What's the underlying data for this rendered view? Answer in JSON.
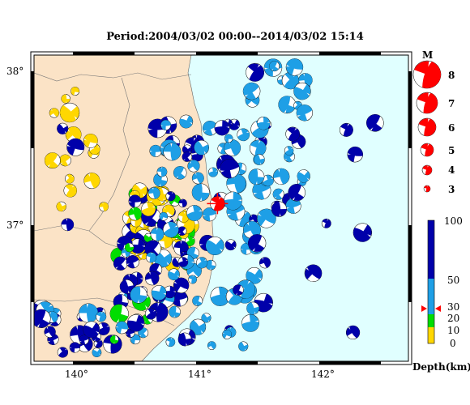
{
  "title": "Period:2004/03/02 00:00--2014/03/02 15:14",
  "map": {
    "lon_labels": [
      "140°",
      "141°",
      "142°"
    ],
    "lat_labels": [
      "38°",
      "37°"
    ],
    "lon_range": [
      139.7,
      142.7
    ],
    "lat_range": [
      36.1,
      38.1
    ],
    "land_color": "#fbe3c6",
    "sea_color": "#e0ffff",
    "highlight_event": {
      "lon": 141.17,
      "lat": 37.13,
      "color": "#ff0000"
    }
  },
  "magnitude_legend": {
    "title": "M",
    "items": [
      "8",
      "7",
      "6",
      "5",
      "4",
      "3"
    ],
    "color": "#ff0000"
  },
  "depth_legend": {
    "title": "Depth(km)",
    "ticks": [
      "100",
      "50",
      "30",
      "20",
      "10",
      "0"
    ],
    "colors": {
      "shallow_0_10": "#ffd700",
      "mid_10_20": "#00dd00",
      "mid_20_50": "#1e9fe6",
      "deep_50_100": "#0000aa"
    }
  }
}
